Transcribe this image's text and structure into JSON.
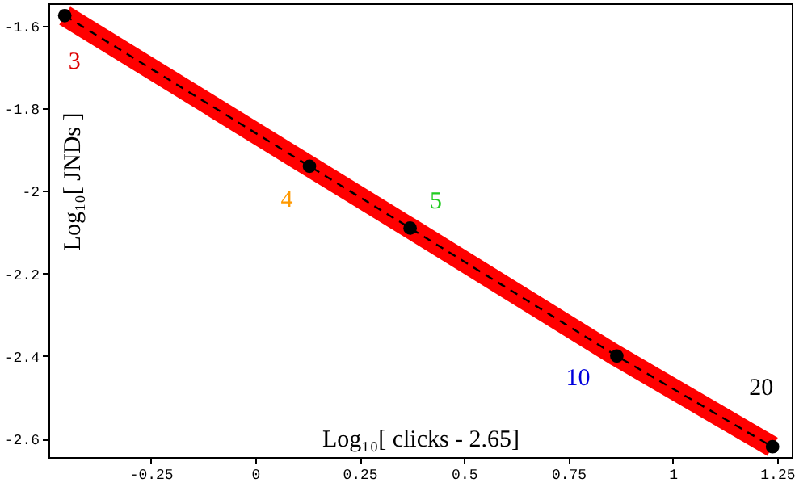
{
  "chart_data": {
    "type": "line",
    "xlabel": "Log₁₀[ clicks - 2.65]",
    "ylabel": "Log₁₀[ JNDs ]",
    "x": [
      -0.456,
      0.13,
      0.371,
      0.866,
      1.239
    ],
    "series": [
      {
        "color": "#ff0000",
        "line_style": "solid",
        "values": [
          -1.575,
          -1.94,
          -2.09,
          -2.4,
          -2.62
        ]
      },
      {
        "color": "#000000",
        "line_style": "dashed",
        "values": [
          -1.575,
          -1.94,
          -2.09,
          -2.4,
          -2.62
        ]
      },
      {
        "type": "scatter",
        "color": "#000000",
        "marker": "circle",
        "values": [
          -1.575,
          -1.94,
          -2.09,
          -2.4,
          -2.62
        ]
      }
    ],
    "annotations": [
      {
        "text": "3",
        "x": -0.456,
        "y": -1.575
      },
      {
        "text": "4",
        "x": 0.13,
        "y": -1.94
      },
      {
        "text": "5",
        "x": 0.371,
        "y": -2.09
      },
      {
        "text": "10",
        "x": 0.866,
        "y": -2.4
      },
      {
        "text": "20",
        "x": 1.239,
        "y": -2.62
      }
    ],
    "xlim": [
      -0.495,
      1.285
    ],
    "ylim": [
      -2.645,
      -1.545
    ],
    "xticks": [
      -0.25,
      0,
      0.25,
      0.5,
      0.75,
      1,
      1.25
    ],
    "yticks": [
      -2.6,
      -2.4,
      -2.2,
      -2,
      -1.8,
      -1.6
    ],
    "grid": false
  }
}
